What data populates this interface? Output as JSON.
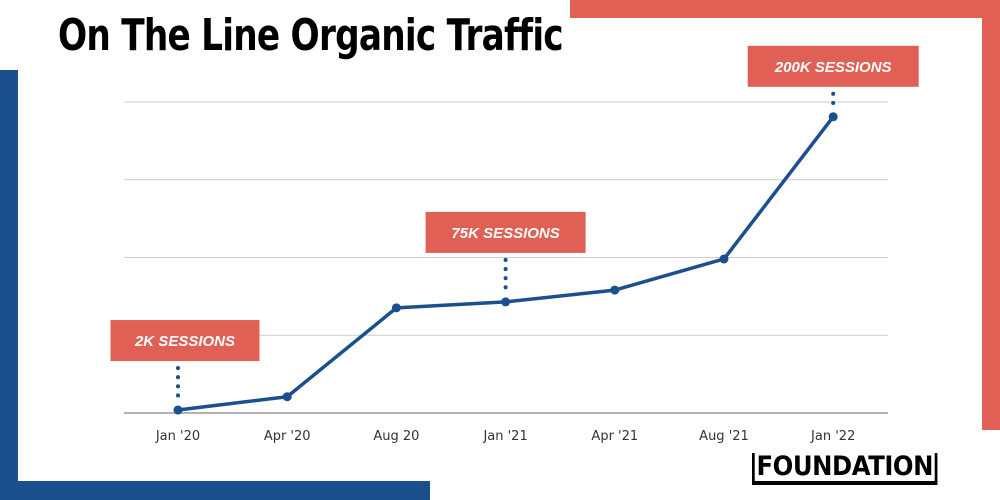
{
  "colors": {
    "line": "#1b4f8d",
    "accent": "#e06055",
    "grid": "#cccccc"
  },
  "logo": "FOUNDATION",
  "chart_data": {
    "type": "line",
    "title": "On The Line Organic Traffic",
    "xlabel": "",
    "ylabel": "",
    "categories": [
      "Jan '20",
      "Apr '20",
      "Aug 20",
      "Jan '21",
      "Apr '21",
      "Aug '21",
      "Jan '22"
    ],
    "values": [
      2000,
      11000,
      71000,
      75000,
      83000,
      104000,
      200000
    ],
    "ylim": [
      0,
      210000
    ],
    "grid": true,
    "y_ticks_shown": false,
    "annotations": [
      {
        "index": 0,
        "text": "2K SESSIONS"
      },
      {
        "index": 3,
        "text": "75K SESSIONS"
      },
      {
        "index": 6,
        "text": "200K SESSIONS"
      }
    ]
  }
}
